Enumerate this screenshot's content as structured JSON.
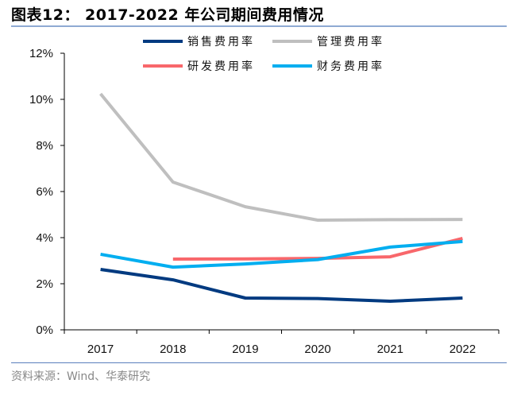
{
  "title": "图表12： 2017-2022 年公司期间费用情况",
  "source": "资料来源：Wind、华泰研究",
  "chart_data": {
    "type": "line",
    "title": "2017-2022 年公司期间费用情况",
    "xlabel": "",
    "ylabel": "",
    "x": [
      "2017",
      "2018",
      "2019",
      "2020",
      "2021",
      "2022"
    ],
    "ylim": [
      0,
      12
    ],
    "yticks": [
      0,
      2,
      4,
      6,
      8,
      10,
      12
    ],
    "ytick_labels": [
      "0%",
      "2%",
      "4%",
      "6%",
      "8%",
      "10%",
      "12%"
    ],
    "grid": false,
    "legend_position": "top",
    "series": [
      {
        "name": "销售费用率",
        "color": "#003a80",
        "values": [
          2.62,
          2.17,
          1.38,
          1.36,
          1.24,
          1.38
        ]
      },
      {
        "name": "管理费用率",
        "color": "#bfbfbf",
        "values": [
          10.24,
          6.41,
          5.34,
          4.76,
          4.78,
          4.79
        ]
      },
      {
        "name": "研发费用率",
        "color": "#f8676b",
        "values": [
          null,
          3.07,
          3.08,
          3.1,
          3.17,
          3.97
        ]
      },
      {
        "name": "财务费用率",
        "color": "#00aef0",
        "values": [
          3.28,
          2.72,
          2.86,
          3.05,
          3.59,
          3.83
        ]
      }
    ]
  }
}
